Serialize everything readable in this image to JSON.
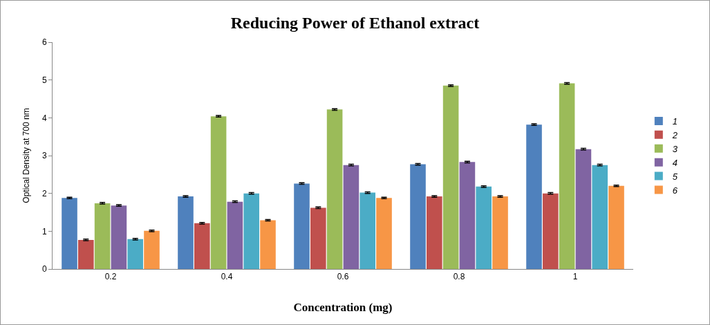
{
  "chart_data": {
    "type": "bar",
    "title": "Reducing Power of Ethanol extract",
    "xlabel": "Concentration (mg)",
    "ylabel": "Optical Density at 700 nm",
    "categories": [
      "0.2",
      "0.4",
      "0.6",
      "0.8",
      "1"
    ],
    "series": [
      {
        "name": "1",
        "color": "#4f81bd",
        "values": [
          1.88,
          1.92,
          2.26,
          2.77,
          3.82
        ],
        "errors": [
          0.02,
          0.02,
          0.02,
          0.02,
          0.02
        ]
      },
      {
        "name": "2",
        "color": "#c0504d",
        "values": [
          0.77,
          1.21,
          1.62,
          1.92,
          2.0
        ],
        "errors": [
          0.02,
          0.02,
          0.02,
          0.02,
          0.02
        ]
      },
      {
        "name": "3",
        "color": "#9bbb59",
        "values": [
          1.74,
          4.04,
          4.22,
          4.85,
          4.91
        ],
        "errors": [
          0.02,
          0.02,
          0.02,
          0.02,
          0.02
        ]
      },
      {
        "name": "4",
        "color": "#8064a2",
        "values": [
          1.68,
          1.78,
          2.75,
          2.83,
          3.17
        ],
        "errors": [
          0.02,
          0.02,
          0.02,
          0.02,
          0.02
        ]
      },
      {
        "name": "5",
        "color": "#4bacc6",
        "values": [
          0.79,
          2.0,
          2.02,
          2.18,
          2.75
        ],
        "errors": [
          0.02,
          0.02,
          0.02,
          0.02,
          0.02
        ]
      },
      {
        "name": "6",
        "color": "#f79646",
        "values": [
          1.01,
          1.29,
          1.88,
          1.92,
          2.2
        ],
        "errors": [
          0.02,
          0.02,
          0.02,
          0.02,
          0.02
        ]
      }
    ],
    "ylim": [
      0,
      6
    ],
    "yticks": [
      0,
      1,
      2,
      3,
      4,
      5,
      6
    ],
    "grid": false,
    "legend": "right"
  }
}
